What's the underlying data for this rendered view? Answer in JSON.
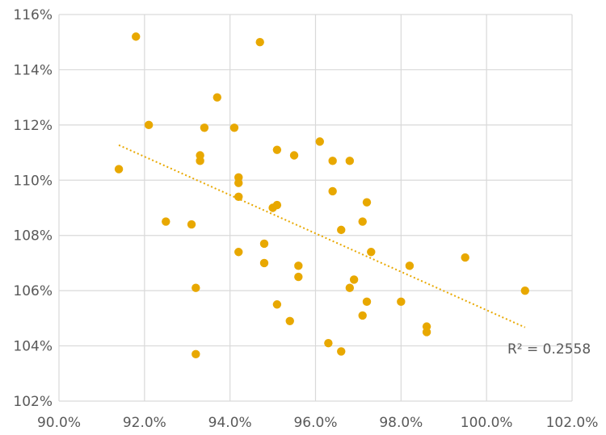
{
  "chart_data": {
    "type": "scatter",
    "title": "",
    "xlabel": "",
    "ylabel": "",
    "xlim": [
      90.0,
      102.0
    ],
    "ylim": [
      102,
      116
    ],
    "x_ticks": [
      90,
      92,
      94,
      96,
      98,
      100,
      102
    ],
    "x_tick_labels": [
      "90.0%",
      "92.0%",
      "94.0%",
      "96.0%",
      "98.0%",
      "100.0%",
      "102.0%"
    ],
    "y_ticks": [
      102,
      104,
      106,
      108,
      110,
      112,
      114,
      116
    ],
    "y_tick_labels": [
      "102%",
      "104%",
      "106%",
      "108%",
      "110%",
      "112%",
      "114%",
      "116%"
    ],
    "grid": true,
    "point_color": "#E8A800",
    "trendline": {
      "type": "linear",
      "style": "dotted",
      "color": "#E8A800",
      "x_start": 91.4,
      "y_start": 111.27,
      "x_end": 100.9,
      "y_end": 104.67,
      "annotation": "R² = 0.2558"
    },
    "series": [
      {
        "points": [
          [
            91.8,
            115.2
          ],
          [
            94.7,
            115.0
          ],
          [
            93.7,
            113.0
          ],
          [
            92.1,
            112.0
          ],
          [
            93.4,
            111.9
          ],
          [
            94.1,
            111.9
          ],
          [
            96.1,
            111.4
          ],
          [
            95.1,
            111.1
          ],
          [
            95.5,
            110.9
          ],
          [
            93.3,
            110.9
          ],
          [
            93.3,
            110.7
          ],
          [
            96.4,
            110.7
          ],
          [
            96.8,
            110.7
          ],
          [
            91.4,
            110.4
          ],
          [
            94.2,
            110.1
          ],
          [
            94.2,
            109.9
          ],
          [
            96.4,
            109.6
          ],
          [
            94.2,
            109.4
          ],
          [
            97.2,
            109.2
          ],
          [
            95.1,
            109.1
          ],
          [
            95.0,
            109.0
          ],
          [
            92.5,
            108.5
          ],
          [
            97.1,
            108.5
          ],
          [
            93.1,
            108.4
          ],
          [
            96.6,
            108.2
          ],
          [
            94.8,
            107.7
          ],
          [
            94.2,
            107.4
          ],
          [
            97.3,
            107.4
          ],
          [
            99.5,
            107.2
          ],
          [
            94.8,
            107.0
          ],
          [
            95.6,
            106.9
          ],
          [
            98.2,
            106.9
          ],
          [
            95.6,
            106.5
          ],
          [
            96.9,
            106.4
          ],
          [
            93.2,
            106.1
          ],
          [
            96.8,
            106.1
          ],
          [
            100.9,
            106.0
          ],
          [
            98.0,
            105.6
          ],
          [
            97.2,
            105.6
          ],
          [
            95.1,
            105.5
          ],
          [
            97.1,
            105.1
          ],
          [
            95.4,
            104.9
          ],
          [
            98.6,
            104.7
          ],
          [
            98.6,
            104.5
          ],
          [
            96.3,
            104.1
          ],
          [
            96.6,
            103.8
          ],
          [
            93.2,
            103.7
          ]
        ]
      }
    ]
  }
}
